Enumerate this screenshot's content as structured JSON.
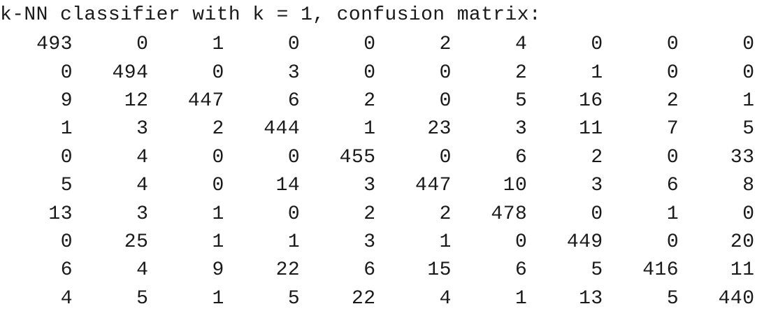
{
  "heading": "k-NN classifier with k = 1, confusion matrix:",
  "matrix": [
    [
      "493",
      "0",
      "1",
      "0",
      "0",
      "2",
      "4",
      "0",
      "0",
      "0"
    ],
    [
      "0",
      "494",
      "0",
      "3",
      "0",
      "0",
      "2",
      "1",
      "0",
      "0"
    ],
    [
      "9",
      "12",
      "447",
      "6",
      "2",
      "0",
      "5",
      "16",
      "2",
      "1"
    ],
    [
      "1",
      "3",
      "2",
      "444",
      "1",
      "23",
      "3",
      "11",
      "7",
      "5"
    ],
    [
      "0",
      "4",
      "0",
      "0",
      "455",
      "0",
      "6",
      "2",
      "0",
      "33"
    ],
    [
      "5",
      "4",
      "0",
      "14",
      "3",
      "447",
      "10",
      "3",
      "6",
      "8"
    ],
    [
      "13",
      "3",
      "1",
      "0",
      "2",
      "2",
      "478",
      "0",
      "1",
      "0"
    ],
    [
      "0",
      "25",
      "1",
      "1",
      "3",
      "1",
      "0",
      "449",
      "0",
      "20"
    ],
    [
      "6",
      "4",
      "9",
      "22",
      "6",
      "15",
      "6",
      "5",
      "416",
      "11"
    ],
    [
      "4",
      "5",
      "1",
      "5",
      "22",
      "4",
      "1",
      "13",
      "5",
      "440"
    ]
  ]
}
